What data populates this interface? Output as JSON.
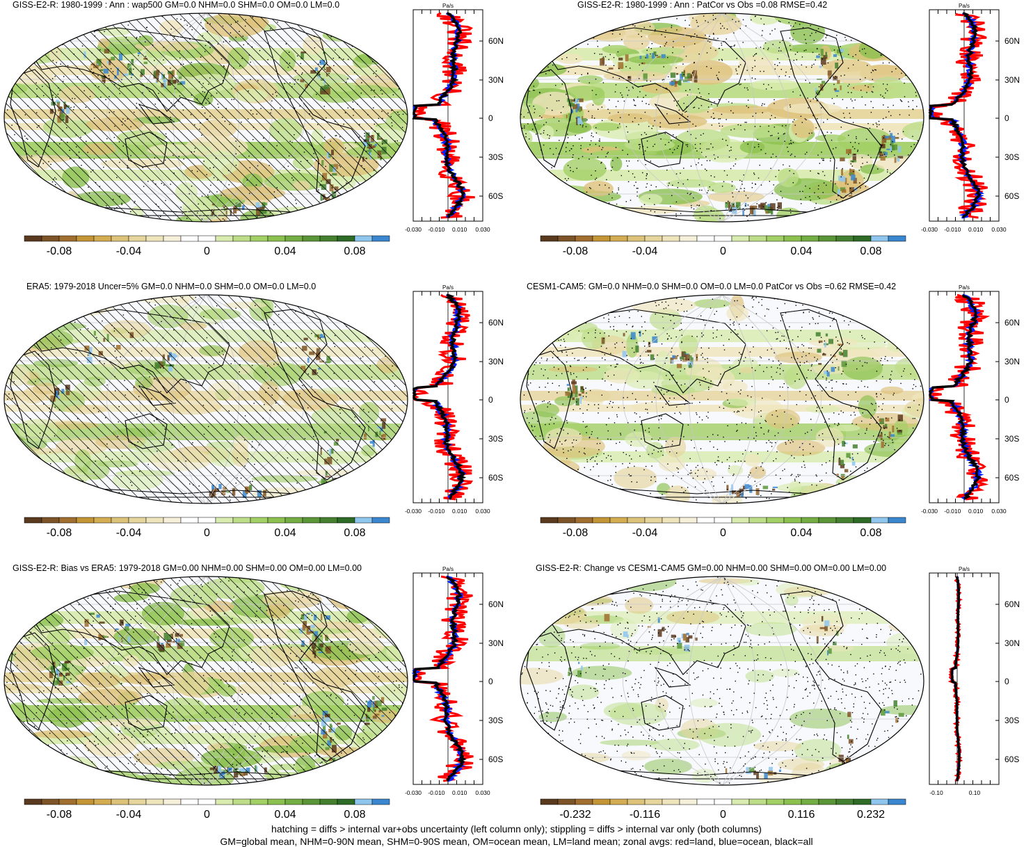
{
  "panels": [
    {
      "title": "GISS-E2-R: 1980-1999 : Ann : wap500 GM=0.0 NHM=0.0 SHM=0.0 OM=0.0 LM=0.0",
      "hatch": true,
      "stipple": "medium",
      "intensity": 1.0,
      "title_dx": 18,
      "colorbar_labels": [
        "-0.08",
        "-0.04",
        "0",
        "0.04",
        "0.08"
      ],
      "zonal_xticks": [
        "-0.030",
        "-0.010",
        "0.010",
        "0.030"
      ],
      "zonal_ylabel": "Pa/s",
      "zonal_lat_labels": [
        "60N",
        "30N",
        "0",
        "30S",
        "60S"
      ]
    },
    {
      "title": "GISS-E2-R: 1980-1999 : Ann : PatCor vs Obs =0.08 RMSE=0.42",
      "hatch": false,
      "stipple": "dense",
      "intensity": 1.0,
      "title_dx": 88,
      "colorbar_labels": [
        "-0.08",
        "-0.04",
        "0",
        "0.04",
        "0.08"
      ],
      "zonal_xticks": [
        "-0.030",
        "-0.010",
        "0.010",
        "0.030"
      ],
      "zonal_ylabel": "Pa/s",
      "zonal_lat_labels": [
        "60N",
        "30N",
        "0",
        "30S",
        "60S"
      ]
    },
    {
      "title": "ERA5: 1979-2018 Uncer=5% GM=0.0 NHM=0.0 SHM=0.0 OM=0.0 LM=0.0",
      "hatch": true,
      "stipple": "light",
      "intensity": 0.6,
      "title_dx": 38,
      "colorbar_labels": [
        "-0.08",
        "-0.04",
        "0",
        "0.04",
        "0.08"
      ],
      "zonal_xticks": [
        "-0.030",
        "-0.010",
        "0.010",
        "0.030"
      ],
      "zonal_ylabel": "Pa/s",
      "zonal_lat_labels": [
        "60N",
        "30N",
        "0",
        "30S",
        "60S"
      ]
    },
    {
      "title": "CESM1-CAM5: GM=0.0 NHM=0.0 SHM=0.0 OM=0.0 LM=0.0 PatCor vs Obs =0.62 RMSE=0.42",
      "hatch": false,
      "stipple": "dense",
      "intensity": 0.7,
      "title_dx": 15,
      "colorbar_labels": [
        "-0.08",
        "-0.04",
        "0",
        "0.04",
        "0.08"
      ],
      "zonal_xticks": [
        "-0.030",
        "-0.010",
        "0.010",
        "0.030"
      ],
      "zonal_ylabel": "Pa/s",
      "zonal_lat_labels": [
        "60N",
        "30N",
        "0",
        "30S",
        "60S"
      ]
    },
    {
      "title": "GISS-E2-R: Bias vs ERA5: 1979-2018 GM=0.00 NHM=0.00 SHM=0.00 OM=0.00 LM=0.00",
      "hatch": true,
      "stipple": "medium",
      "intensity": 1.0,
      "title_dx": 18,
      "colorbar_labels": [
        "-0.08",
        "-0.04",
        "0",
        "0.04",
        "0.08"
      ],
      "zonal_xticks": [
        "-0.030",
        "-0.010",
        "0.010",
        "0.030"
      ],
      "zonal_ylabel": "Pa/s",
      "zonal_lat_labels": [
        "60N",
        "30N",
        "0",
        "30S",
        "60S"
      ]
    },
    {
      "title": "GISS-E2-R: Change vs CESM1-CAM5 GM=0.00 NHM=0.00 SHM=0.00 OM=0.00 LM=0.00",
      "hatch": false,
      "stipple": "dense",
      "intensity": 0.35,
      "title_dx": 28,
      "colorbar_labels": [
        "-0.232",
        "-0.116",
        "0",
        "0.116",
        "0.232"
      ],
      "zonal_xticks": [
        "-0.10",
        "0.10"
      ],
      "zonal_ylabel": "Pa/s",
      "zonal_lat_labels": [
        "60N",
        "30N",
        "0",
        "30S",
        "60S"
      ]
    }
  ],
  "footer": {
    "line1": "hatching = diffs > internal var+obs uncertainty (left column only); stippling = diffs > internal var only (both columns)",
    "line2": "GM=global mean, NHM=0-90N mean, SHM=0-90S mean, OM=ocean mean, LM=land mean; zonal avgs: red=land, blue=ocean, black=all"
  },
  "colorbar_colors": [
    "#5a3a1e",
    "#7d5427",
    "#a06e2e",
    "#c49536",
    "#d4ac52",
    "#ddc27a",
    "#e6d59c",
    "#efe5bd",
    "#f6efda",
    "#ffffff",
    "#ffffff",
    "#d9ecb0",
    "#bddd88",
    "#a3cf67",
    "#8cc150",
    "#73ad44",
    "#5a9638",
    "#44802f",
    "#2e6b27",
    "#8ec6ee",
    "#3a86cf"
  ],
  "series_colors": {
    "land": "#ff0000",
    "ocean": "#0020ff",
    "all": "#000000"
  }
}
